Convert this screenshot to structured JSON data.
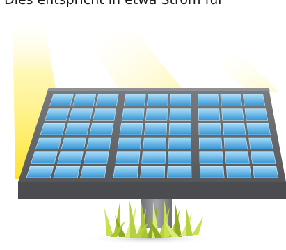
{
  "caption": "Dies entspricht in etwa Strom für",
  "illustration": {
    "subject": "solar-panel",
    "colors": {
      "frame": "#6b6d70",
      "frame_edge": "#4d4f52",
      "cell_light": "#9fd6f5",
      "cell_dark": "#2f8fd1",
      "pole": "#8a8c90",
      "grass_light": "#d8e96a",
      "grass_dark": "#8cab22",
      "sun_ray": "#ffe033"
    }
  }
}
